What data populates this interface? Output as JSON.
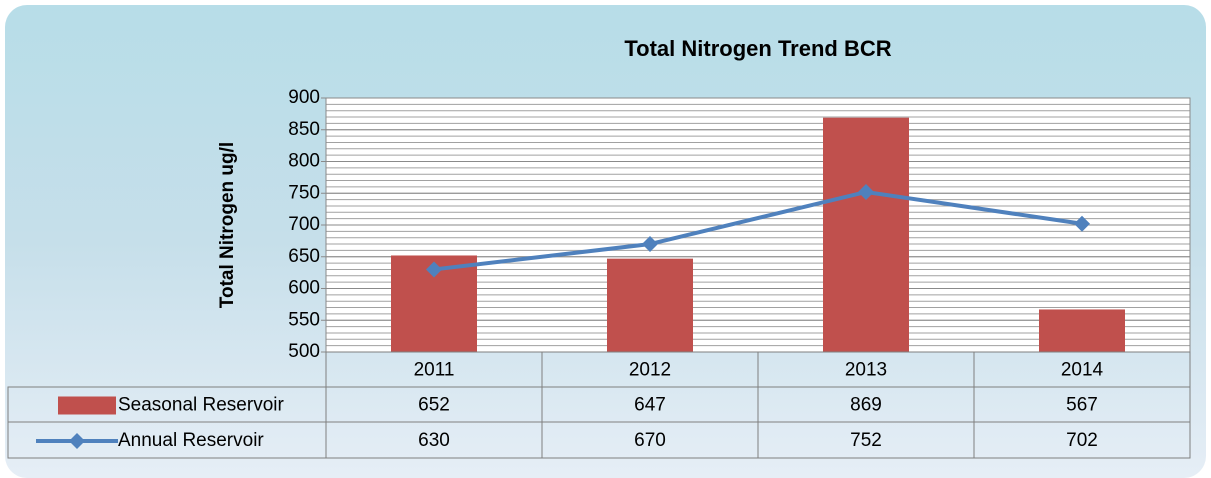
{
  "chart_data": {
    "type": "bar_line",
    "title": "Total Nitrogen Trend BCR",
    "y_label": "Total Nitrogen ug/l",
    "categories": [
      "2011",
      "2012",
      "2013",
      "2014"
    ],
    "series": [
      {
        "name": "Seasonal Reservoir",
        "type": "bar",
        "color": "#c0504d",
        "values": [
          652,
          647,
          869,
          567
        ]
      },
      {
        "name": "Annual Reservoir",
        "type": "line",
        "color": "#4f81bd",
        "values": [
          630,
          670,
          752,
          702
        ]
      }
    ],
    "ylim": [
      500,
      900
    ],
    "yticks": [
      500,
      550,
      600,
      650,
      700,
      750,
      800,
      850,
      900
    ],
    "grid": true,
    "minor_grid": true,
    "data_table": true
  }
}
